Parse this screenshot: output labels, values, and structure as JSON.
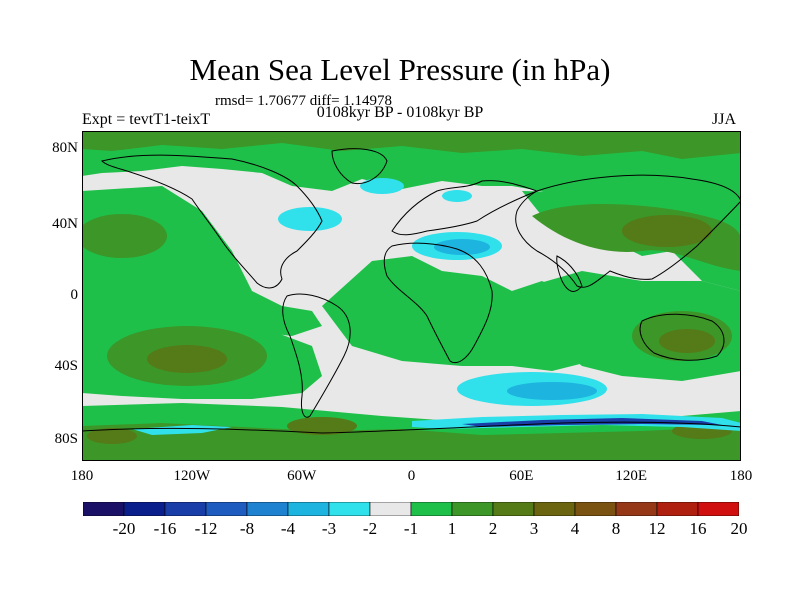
{
  "title": "Mean Sea Level Pressure (in hPa)",
  "stats": "rmsd= 1.70677 diff= 1.14978",
  "experiment": "Expt = tevtT1-teixT",
  "period": "0108kyr BP - 0108kyr BP",
  "season": "JJA",
  "lat_labels": [
    "80N",
    "40N",
    "0",
    "40S",
    "80S"
  ],
  "lon_labels": [
    "180",
    "120W",
    "60W",
    "0",
    "60E",
    "120E",
    "180"
  ],
  "colorbar": {
    "colors": [
      "#1a1066",
      "#0b1f8c",
      "#1a3ea8",
      "#1e5cc0",
      "#1e82d0",
      "#1eb4e0",
      "#30e0ea",
      "#e8e8e8",
      "#1fc04a",
      "#3c9628",
      "#557a18",
      "#6b6410",
      "#7a5212",
      "#953818",
      "#b02010",
      "#d01010"
    ],
    "labels": [
      "-20",
      "-16",
      "-12",
      "-8",
      "-4",
      "-3",
      "-2",
      "-1",
      "1",
      "2",
      "3",
      "4",
      "8",
      "12",
      "16",
      "20"
    ]
  },
  "map_colors": {
    "ocean_neutral": "#e8e8e8",
    "green": "#1fc04a",
    "dark_green": "#3c9628",
    "olive": "#557a18",
    "brown": "#6b6410",
    "cyan": "#30e0ea",
    "blue": "#1eb4e0",
    "dark_blue": "#1a3ea8"
  }
}
